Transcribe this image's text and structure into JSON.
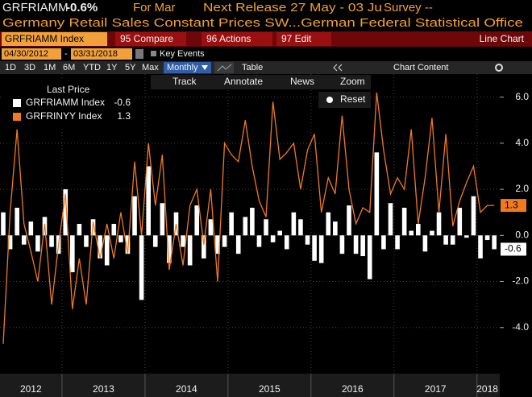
{
  "header": {
    "ticker": "GRFRIAMM",
    "change": "-0.6%",
    "period": "For Mar",
    "release": "Next Release 27 May - 03 Ju",
    "survey": "Survey --"
  },
  "description": "Germany Retail Sales Constant Prices SW...German Federal Statistical Office",
  "toolbar": {
    "security": "GRFRIAMM Index",
    "buttons": [
      "95 Compare",
      "96 Actions",
      "97 Edit"
    ],
    "chart_type": "Line Chart"
  },
  "range": {
    "start": "04/30/2012",
    "separator": "-",
    "end": "03/31/2018",
    "key_events": "Key Events"
  },
  "periods": [
    "1D",
    "3D",
    "1M",
    "6M",
    "YTD",
    "1Y",
    "5Y",
    "Max"
  ],
  "frequency": "Monthly",
  "table": "Table",
  "chart_content": "Chart Content",
  "chart_tools": [
    "Track",
    "Annotate",
    "News",
    "Zoom"
  ],
  "reset": "Reset",
  "chart_data": {
    "type": "combo",
    "legend_title": "Last Price",
    "categories": [
      "2012",
      null,
      null,
      null,
      null,
      null,
      null,
      null,
      null,
      "2013",
      null,
      null,
      null,
      null,
      null,
      null,
      null,
      null,
      null,
      null,
      null,
      "2014",
      null,
      null,
      null,
      null,
      null,
      null,
      null,
      null,
      null,
      null,
      null,
      "2015",
      null,
      null,
      null,
      null,
      null,
      null,
      null,
      null,
      null,
      null,
      null,
      "2016",
      null,
      null,
      null,
      null,
      null,
      null,
      null,
      null,
      null,
      null,
      null,
      "2017",
      null,
      null,
      null,
      null,
      null,
      null,
      null,
      null,
      null,
      null,
      null,
      "2018",
      null,
      null
    ],
    "series": [
      {
        "name": "GRFRIAMM Index",
        "type": "bar",
        "color": "#ffffff",
        "values": [
          1.0,
          -0.6,
          1.2,
          -0.4,
          0.6,
          -0.7,
          0.8,
          -0.5,
          -0.8,
          2.0,
          -1.6,
          0.5,
          -0.5,
          0.7,
          -1.0,
          -1.3,
          0.5,
          -0.3,
          -0.8,
          1.7,
          -2.8,
          3.0,
          -0.5,
          1.4,
          -1.2,
          1.0,
          -0.5,
          -1.3,
          1.3,
          -1.0,
          0.7,
          -0.8,
          -0.5,
          1.0,
          -0.8,
          0.8,
          1.2,
          -0.5,
          0.7,
          -0.3,
          0.2,
          -0.6,
          1.0,
          0.7,
          -0.4,
          -1.1,
          -1.2,
          1.0,
          0.6,
          -0.8,
          1.3,
          -0.8,
          -0.9,
          -1.9,
          3.6,
          -0.6,
          1.4,
          -0.6,
          1.2,
          0.2,
          0.5,
          -0.7,
          0.2,
          1.0,
          -0.4,
          -0.4,
          1.2,
          -0.1,
          1.7,
          -1.0,
          -0.2,
          -0.6
        ]
      },
      {
        "name": "GRFRINYY Index",
        "type": "line",
        "color": "#f07a20",
        "values": [
          -4.7,
          1.0,
          4.6,
          0.5,
          -0.7,
          -2.0,
          0.5,
          -3.0,
          -0.4,
          1.8,
          -3.2,
          -1.0,
          -3.0,
          0.6,
          -1.0,
          0.5,
          -1.0,
          1.0,
          -0.8,
          3.2,
          0.0,
          4.0,
          1.3,
          3.5,
          -1.5,
          0.5,
          -1.3,
          1.3,
          2.0,
          -0.4,
          2.0,
          -2.0,
          4.0,
          3.5,
          3.2,
          5.0,
          3.0,
          1.5,
          0.8,
          5.8,
          3.3,
          3.6,
          4.0,
          2.0,
          3.7,
          4.4,
          1.0,
          2.5,
          1.8,
          5.2,
          2.0,
          0.5,
          1.2,
          1.0,
          6.2,
          3.7,
          1.8,
          2.5,
          2.0,
          4.6,
          0.5,
          2.5,
          5.1,
          1.0,
          4.4,
          0.4,
          1.5,
          2.3,
          3.0,
          1.0,
          1.3,
          1.3
        ]
      }
    ],
    "ylim": [
      -6,
      7
    ],
    "yticks": [
      {
        "value": 6,
        "label": "6.0"
      },
      {
        "value": 4,
        "label": "4.0"
      },
      {
        "value": 2,
        "label": "2.0"
      },
      {
        "value": 0,
        "label": "0.0"
      },
      {
        "value": -2,
        "label": "-2.0"
      },
      {
        "value": -4,
        "label": "-4.0"
      }
    ],
    "grid": true
  }
}
